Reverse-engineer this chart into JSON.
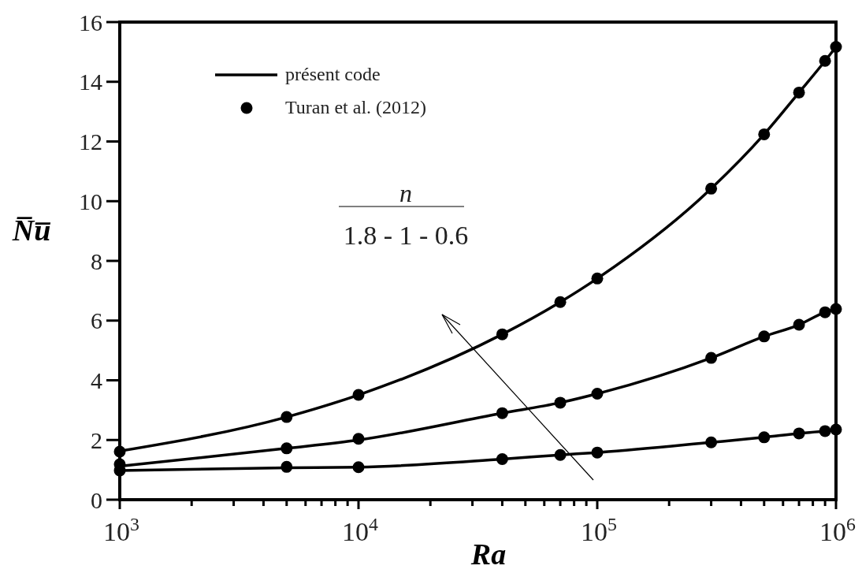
{
  "chart_data": {
    "type": "line",
    "xlabel": "Ra",
    "ylabel": "N̅u̅",
    "log": "x",
    "xlim": [
      1000,
      1000000
    ],
    "ylim": [
      0,
      16
    ],
    "xticks": [
      {
        "value": 1000,
        "label": "10$^{3}$"
      },
      {
        "value": 2000,
        "label": null
      },
      {
        "value": 3000,
        "label": null
      },
      {
        "value": 4000,
        "label": null
      },
      {
        "value": 5000,
        "label": null
      },
      {
        "value": 6000,
        "label": null
      },
      {
        "value": 7000,
        "label": null
      },
      {
        "value": 8000,
        "label": null
      },
      {
        "value": 9000,
        "label": null
      },
      {
        "value": 10000,
        "label": "10$^{4}$"
      },
      {
        "value": 20000,
        "label": null
      },
      {
        "value": 30000,
        "label": null
      },
      {
        "value": 40000,
        "label": null
      },
      {
        "value": 50000,
        "label": null
      },
      {
        "value": 60000,
        "label": null
      },
      {
        "value": 70000,
        "label": null
      },
      {
        "value": 80000,
        "label": null
      },
      {
        "value": 90000,
        "label": null
      },
      {
        "value": 100000,
        "label": "10$^{5}$"
      },
      {
        "value": 200000,
        "label": null
      },
      {
        "value": 300000,
        "label": null
      },
      {
        "value": 400000,
        "label": null
      },
      {
        "value": 500000,
        "label": null
      },
      {
        "value": 600000,
        "label": null
      },
      {
        "value": 700000,
        "label": null
      },
      {
        "value": 800000,
        "label": null
      },
      {
        "value": 900000,
        "label": null
      },
      {
        "value": 1000000,
        "label": "10$^{6}$"
      }
    ],
    "yticks": [
      0,
      2,
      4,
      6,
      8,
      10,
      12,
      14,
      16
    ],
    "x": [
      1000,
      5000,
      10000,
      40000,
      70000,
      100000,
      300000,
      500000,
      700000,
      900000,
      1000000
    ],
    "legend": "top left",
    "grid": false,
    "line_style": "solid",
    "series": [
      {
        "name": "présent code",
        "color": "#000000",
        "values": [
          1.63,
          2.77,
          3.51,
          5.54,
          6.62,
          7.41,
          10.42,
          12.24,
          13.64,
          14.7,
          15.17
        ]
      },
      {
        "color": "#000000",
        "values": [
          1.12,
          1.72,
          2.0,
          2.9,
          3.25,
          3.55,
          4.75,
          5.47,
          5.86,
          6.28,
          6.39
        ]
      },
      {
        "color": "#000000",
        "values": [
          0.98,
          1.07,
          1.09,
          1.36,
          1.5,
          1.58,
          1.92,
          2.09,
          2.22,
          2.3,
          2.35
        ]
      },
      {
        "name": "Turan et al. (2012)",
        "type": "scatter",
        "marker": "circle",
        "color": "#000000",
        "values": [
          1.61,
          2.77,
          3.51,
          5.54,
          6.62,
          7.41,
          10.42,
          12.24,
          13.64,
          14.7,
          15.17
        ]
      },
      {
        "type": "scatter",
        "marker": "circle",
        "color": "#000000",
        "values": [
          1.19,
          1.72,
          2.04,
          2.9,
          3.25,
          3.55,
          4.75,
          5.47,
          5.86,
          6.28,
          6.39
        ]
      },
      {
        "type": "scatter",
        "marker": "circle",
        "color": "#000000",
        "values": [
          0.98,
          1.1,
          1.09,
          1.36,
          1.5,
          1.58,
          1.92,
          2.09,
          2.22,
          2.3,
          2.35
        ]
      }
    ],
    "annotations": [
      "n",
      "1.8 - 1 - 0.6"
    ]
  }
}
